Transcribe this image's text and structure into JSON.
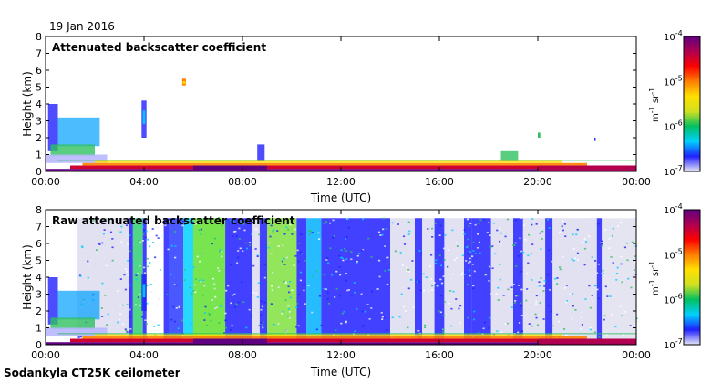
{
  "header": {
    "date": "19 Jan 2016",
    "footer": "Sodankyla CT25K ceilometer"
  },
  "chart_data": [
    {
      "type": "heatmap",
      "title": "Attenuated backscatter coefficient",
      "xlabel": "Time (UTC)",
      "ylabel": "Height (km)",
      "x_ticks": [
        "00:00",
        "04:00",
        "08:00",
        "12:00",
        "16:00",
        "20:00",
        "00:00"
      ],
      "x_range_hours": [
        0,
        24
      ],
      "y_ticks": [
        "0",
        "1",
        "2",
        "3",
        "4",
        "5",
        "6",
        "7",
        "8"
      ],
      "ylim": [
        0,
        8
      ],
      "colorbar": {
        "scale": "log",
        "range": [
          1e-07,
          0.0001
        ],
        "tick_mantissa": [
          "10",
          "10",
          "10",
          "10"
        ],
        "tick_exponents": [
          "-4",
          "-5",
          "-6",
          "-7"
        ],
        "label_unit_a": "m",
        "label_exp_a": "-1",
        "label_unit_b": " sr",
        "label_exp_b": "-1",
        "colors": [
          "#e6e6f5",
          "#2020ff",
          "#00d0ff",
          "#00c060",
          "#d0e020",
          "#ffe000",
          "#ff8000",
          "#ff0000",
          "#b00050",
          "#600080"
        ]
      }
    },
    {
      "type": "heatmap",
      "title": "Raw attenuated backscatter coefficient",
      "xlabel": "Time (UTC)",
      "ylabel": "Height (km)",
      "x_ticks": [
        "00:00",
        "04:00",
        "08:00",
        "12:00",
        "16:00",
        "20:00",
        "00:00"
      ],
      "x_range_hours": [
        0,
        24
      ],
      "y_ticks": [
        "0",
        "1",
        "2",
        "3",
        "4",
        "5",
        "6",
        "7",
        "8"
      ],
      "ylim": [
        0,
        8
      ],
      "colorbar": {
        "scale": "log",
        "range": [
          1e-07,
          0.0001
        ],
        "tick_mantissa": [
          "10",
          "10",
          "10",
          "10"
        ],
        "tick_exponents": [
          "-4",
          "-5",
          "-6",
          "-7"
        ],
        "label_unit_a": "m",
        "label_exp_a": "-1",
        "label_unit_b": " sr",
        "label_exp_b": "-1",
        "colors": [
          "#e6e6f5",
          "#2020ff",
          "#00d0ff",
          "#00c060",
          "#d0e020",
          "#ffe000",
          "#ff8000",
          "#ff0000",
          "#b00050",
          "#600080"
        ]
      }
    }
  ]
}
